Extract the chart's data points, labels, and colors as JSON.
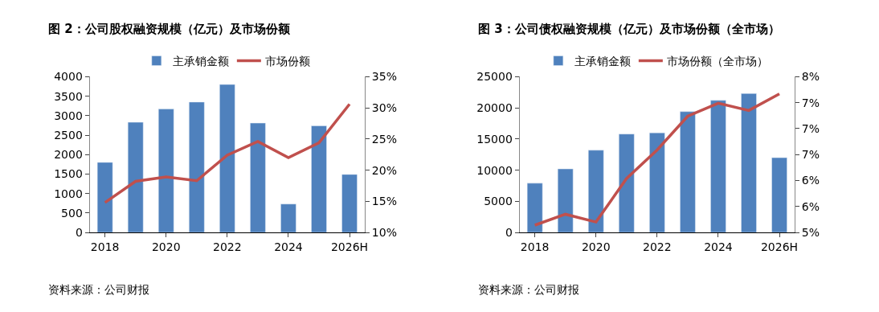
{
  "chart_data": [
    {
      "type": "bar",
      "title": "图 2：公司股权融资规模（亿元）及市场份额",
      "categories": [
        "2018",
        null,
        "2020",
        null,
        "2022",
        null,
        "2024",
        null,
        "2026H"
      ],
      "series": [
        {
          "name": "主承销金额",
          "color": "#4f81bd",
          "values": [
            1800,
            2830,
            3170,
            3350,
            3800,
            2810,
            730,
            2740,
            1490
          ]
        },
        {
          "name": "市场份额",
          "type": "line",
          "axis": "y2",
          "color": "#c0504d",
          "values": [
            14.8,
            18.2,
            18.9,
            18.3,
            22.4,
            24.6,
            22.0,
            24.4,
            30.6
          ]
        }
      ],
      "ylim": [
        0,
        4000
      ],
      "yticks": [
        0,
        500,
        1000,
        1500,
        2000,
        2500,
        3000,
        3500,
        4000
      ],
      "y2lim": [
        10,
        35
      ],
      "y2ticks": [
        {
          "value": 10,
          "label": "10%"
        },
        {
          "value": 15,
          "label": "15%"
        },
        {
          "value": 20,
          "label": "20%"
        },
        {
          "value": 25,
          "label": "25%"
        },
        {
          "value": 30,
          "label": "30%"
        },
        {
          "value": 35,
          "label": "35%"
        }
      ],
      "legend": "top",
      "annotations": [
        "资料来源：公司财报"
      ]
    },
    {
      "type": "bar",
      "title": "图 3：公司债权融资规模（亿元）及市场份额（全市场）",
      "categories": [
        "2018",
        null,
        "2020",
        null,
        "2022",
        null,
        "2024",
        null,
        "2026H"
      ],
      "series": [
        {
          "name": "主承销金额",
          "color": "#4f81bd",
          "values": [
            7900,
            10200,
            13200,
            15800,
            16000,
            19400,
            21200,
            22300,
            12000
          ]
        },
        {
          "name": "市场份额（全市场）",
          "type": "line",
          "axis": "y2",
          "color": "#c0504d",
          "values": [
            5.14,
            5.35,
            5.2,
            6.04,
            6.59,
            7.24,
            7.49,
            7.35,
            7.67
          ]
        }
      ],
      "ylim": [
        0,
        25000
      ],
      "yticks": [
        0,
        5000,
        10000,
        15000,
        20000,
        25000
      ],
      "y2lim": [
        5,
        8
      ],
      "y2ticks": [
        {
          "value": 5,
          "label": "5%"
        },
        {
          "value": 5.5,
          "label": "6%"
        },
        {
          "value": 6,
          "label": "6%"
        },
        {
          "value": 6.5,
          "label": "7%"
        },
        {
          "value": 7,
          "label": "7%"
        },
        {
          "value": 7.5,
          "label": "7%"
        },
        {
          "value": 8,
          "label": "8%"
        }
      ],
      "legend": "top",
      "annotations": [
        "资料来源：公司财报"
      ]
    }
  ]
}
